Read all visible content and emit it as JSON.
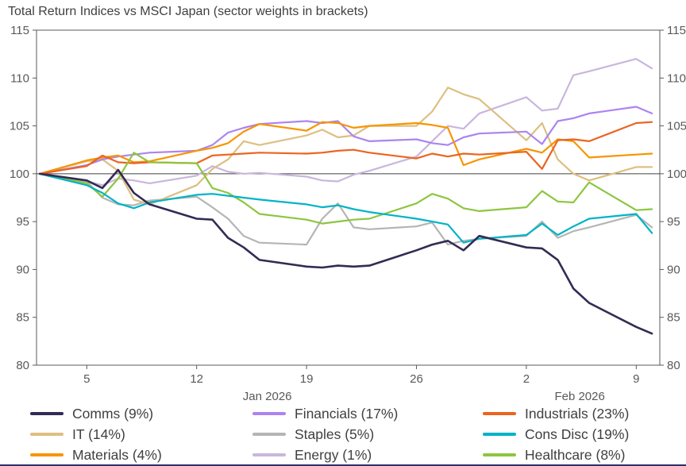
{
  "chart_data": {
    "type": "line",
    "title": "Total Return Indices vs MSCI Japan (sector weights in brackets)",
    "y_range": [
      80,
      115
    ],
    "y_ticks": [
      80,
      85,
      90,
      95,
      100,
      105,
      110,
      115
    ],
    "y_tick_labels_both_sides": true,
    "reference_line": 100,
    "grid": "off",
    "axis_color": "#595959",
    "reference_line_color": "#404040",
    "x_range_days": [
      1.8,
      41.5
    ],
    "x_days": [
      2,
      5,
      6,
      7,
      8,
      9,
      12,
      13,
      14,
      15,
      16,
      19,
      20,
      21,
      22,
      23,
      26,
      27,
      28,
      29,
      30,
      33,
      34,
      35,
      36,
      37,
      40,
      41
    ],
    "x_tick_positions": [
      5,
      12,
      19,
      26,
      33,
      40
    ],
    "x_tick_labels": [
      "5",
      "12",
      "19",
      "26",
      "2",
      "9"
    ],
    "month_labels": [
      {
        "day": 16.5,
        "label": "Jan 2026"
      },
      {
        "day": 36.4,
        "label": "Feb 2026"
      }
    ],
    "legend_position": "bottom",
    "series": [
      {
        "label": "Comms (9%)",
        "color": "#332b54",
        "values": [
          100,
          99.3,
          98.5,
          100.4,
          98,
          96.8,
          95.3,
          95.2,
          93.3,
          92.3,
          91,
          90.3,
          90.2,
          90.4,
          90.3,
          90.4,
          92,
          92.6,
          93,
          92,
          93.5,
          92.3,
          92.2,
          91,
          88,
          86.5,
          84,
          83.3
        ]
      },
      {
        "label": "IT (14%)",
        "color": "#ddbf80",
        "values": [
          100,
          101.3,
          101.5,
          100.3,
          97.3,
          96.8,
          98.8,
          100.5,
          101.5,
          103.4,
          103,
          104,
          104.6,
          103.8,
          104,
          105,
          105,
          106.5,
          109,
          108.3,
          107.8,
          103.5,
          105.3,
          101.5,
          100,
          99.3,
          100.7,
          100.7
        ]
      },
      {
        "label": "Materials (4%)",
        "color": "#f79500",
        "values": [
          100,
          101.4,
          101.7,
          101.9,
          101.2,
          101.3,
          102.4,
          102.7,
          103.2,
          104.4,
          105.2,
          104.5,
          105.4,
          105.3,
          104.8,
          105,
          105.3,
          105.1,
          104.8,
          100.9,
          101.5,
          102.6,
          102.2,
          103.6,
          103.4,
          101.7,
          102,
          102.1
        ]
      },
      {
        "label": "Financials (17%)",
        "color": "#ab84f0",
        "values": [
          100,
          100.9,
          101.5,
          101.8,
          102,
          102.2,
          102.4,
          103,
          104.3,
          104.8,
          105.2,
          105.5,
          105.3,
          105.5,
          103.9,
          103.4,
          103.6,
          103.2,
          103,
          103.8,
          104.2,
          104.4,
          103.1,
          105.5,
          105.8,
          106.3,
          107,
          106.3
        ]
      },
      {
        "label": "Staples (5%)",
        "color": "#b5b5b5",
        "values": [
          100,
          99.2,
          97.5,
          96.8,
          96.7,
          97.2,
          97.6,
          96.5,
          95.3,
          93.5,
          92.8,
          92.6,
          95.3,
          96.9,
          94.4,
          94.2,
          94.5,
          94.9,
          92.6,
          93,
          93.2,
          93.5,
          95,
          93.3,
          94,
          94.4,
          95.7,
          94.4
        ]
      },
      {
        "label": "Energy (1%)",
        "color": "#c9b6dc",
        "values": [
          100,
          99.2,
          98.8,
          99.5,
          99.3,
          99,
          99.8,
          100.8,
          100.2,
          100,
          100.1,
          99.7,
          99.3,
          99.2,
          99.9,
          100.3,
          101.8,
          103.4,
          105,
          104.7,
          106.3,
          108,
          106.6,
          106.8,
          110.3,
          110.7,
          112,
          111
        ]
      },
      {
        "label": "Industrials (23%)",
        "color": "#eb6420",
        "values": [
          100,
          100.8,
          101.9,
          101.2,
          101.1,
          101.2,
          101.1,
          101.9,
          102,
          102.1,
          102.2,
          102.1,
          102.2,
          102.4,
          102.5,
          102.2,
          101.6,
          102.1,
          101.8,
          102.1,
          102,
          102.3,
          100.5,
          103.5,
          103.6,
          103.4,
          105.3,
          105.4
        ]
      },
      {
        "label": "Cons Disc (19%)",
        "color": "#00b4c5",
        "values": [
          100,
          98.8,
          98,
          96.9,
          96.4,
          97,
          97.8,
          97.9,
          97.7,
          97.5,
          97.3,
          96.8,
          96.5,
          96.7,
          96.3,
          96,
          95.3,
          95,
          94.7,
          92.8,
          93.2,
          93.6,
          94.8,
          93.6,
          94.5,
          95.3,
          95.8,
          93.8
        ]
      },
      {
        "label": "Healthcare (8%)",
        "color": "#8dc63f",
        "values": [
          100,
          99,
          97.6,
          99.5,
          102.2,
          101.2,
          101.1,
          98.5,
          98,
          97,
          95.8,
          95.2,
          94.8,
          95,
          95.2,
          95.3,
          96.9,
          97.9,
          97.4,
          96.4,
          96.1,
          96.5,
          98.2,
          97.1,
          97,
          99.1,
          96.2,
          96.3
        ]
      }
    ]
  }
}
